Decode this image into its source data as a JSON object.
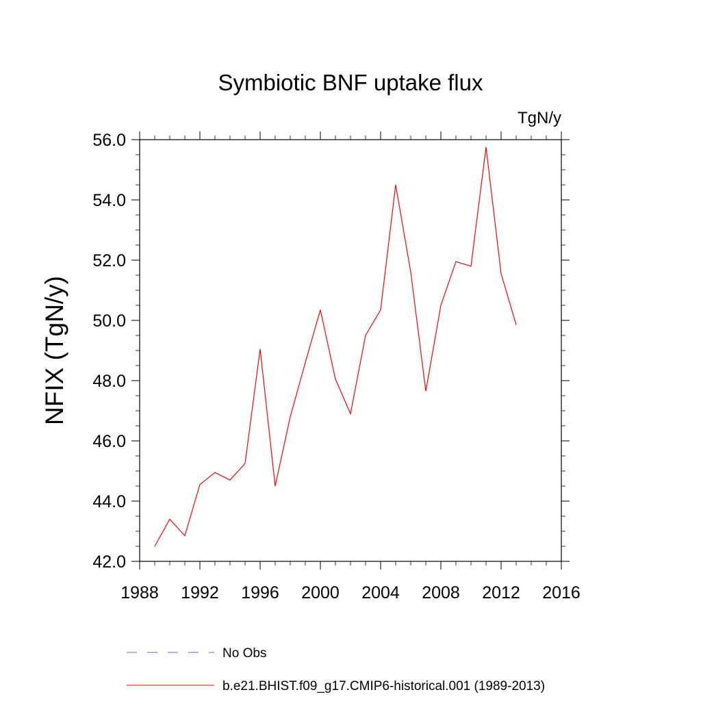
{
  "chart_data": {
    "type": "line",
    "title": "Symbiotic BNF uptake flux",
    "units": "TgN/y",
    "ylabel": "NFIX  (TgN/y)",
    "xlabel": "",
    "xlim": [
      1988,
      2016
    ],
    "ylim": [
      42.0,
      56.0
    ],
    "x_ticks": [
      1988,
      1992,
      1996,
      2000,
      2004,
      2008,
      2012,
      2016
    ],
    "y_ticks": [
      "42.0",
      "44.0",
      "46.0",
      "48.0",
      "50.0",
      "52.0",
      "54.0",
      "56.0"
    ],
    "series": [
      {
        "name": "b.e21.BHIST.f09_g17.CMIP6-historical.001 (1989-2013)",
        "color": "#ff0000",
        "style": "solid",
        "x": [
          1989,
          1990,
          1991,
          1992,
          1993,
          1994,
          1995,
          1996,
          1997,
          1998,
          1999,
          2000,
          2001,
          2002,
          2003,
          2004,
          2005,
          2006,
          2007,
          2008,
          2009,
          2010,
          2011,
          2012,
          2013
        ],
        "y": [
          42.5,
          43.4,
          42.85,
          44.55,
          44.95,
          44.7,
          45.25,
          49.05,
          44.5,
          46.8,
          48.6,
          50.35,
          48.05,
          46.9,
          49.5,
          50.35,
          54.5,
          51.6,
          47.65,
          50.5,
          51.95,
          51.8,
          55.75,
          51.55,
          49.85
        ]
      }
    ],
    "legend": [
      {
        "label": "No Obs",
        "color": "#6a5acd",
        "style": "dashed"
      },
      {
        "label": "b.e21.BHIST.f09_g17.CMIP6-historical.001 (1989-2013)",
        "color": "#ff0000",
        "style": "solid"
      }
    ]
  }
}
